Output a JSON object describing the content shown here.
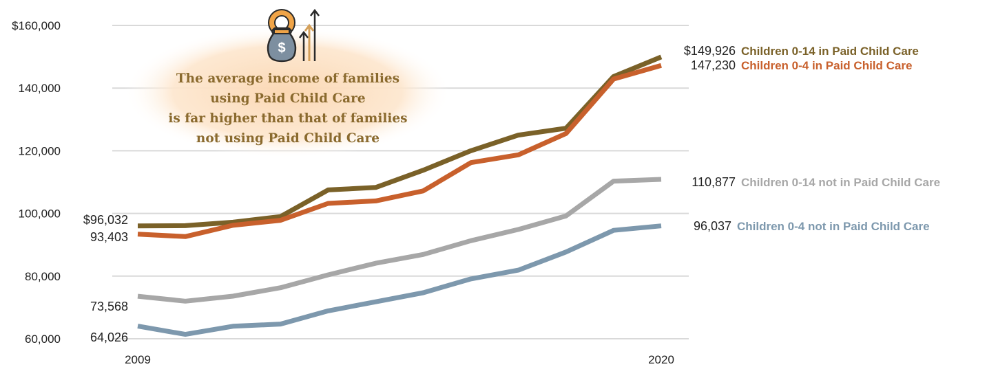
{
  "chart_data": {
    "type": "line",
    "title": "",
    "xlabel": "",
    "ylabel": "",
    "x": [
      2009,
      2010,
      2011,
      2012,
      2013,
      2014,
      2015,
      2016,
      2017,
      2018,
      2019,
      2020
    ],
    "ylim": [
      60000,
      160000
    ],
    "grid": true,
    "x_tick_labels": [
      "2009",
      "2020"
    ],
    "y_tick_labels": [
      "$160,000",
      "140,000",
      "120,000",
      "100,000",
      "80,000",
      "60,000"
    ],
    "y_ticks": [
      160000,
      140000,
      120000,
      100000,
      80000,
      60000
    ],
    "series": [
      {
        "name": "Children 0-14 in Paid Child Care",
        "color": "#7a6128",
        "values": [
          96032,
          96100,
          97200,
          99000,
          107500,
          108300,
          113800,
          120000,
          125000,
          127200,
          143700,
          149926
        ],
        "start_label": "$96,032",
        "end_label": "$149,926"
      },
      {
        "name": "Children 0-4 in Paid Child Care",
        "color": "#c8602c",
        "values": [
          93403,
          92600,
          96200,
          97800,
          103200,
          104000,
          107200,
          116200,
          118700,
          125500,
          142900,
          147230
        ],
        "start_label": "93,403",
        "end_label": "147,230"
      },
      {
        "name": "Children 0-14 not in Paid Child Care",
        "color": "#a7a7a7",
        "values": [
          73568,
          72000,
          73600,
          76300,
          80400,
          84100,
          86900,
          91300,
          94900,
          99200,
          110300,
          110877
        ],
        "start_label": "73,568",
        "end_label": "110,877"
      },
      {
        "name": "Children 0-4 not in Paid Child Care",
        "color": "#7d98ad",
        "values": [
          64026,
          61400,
          64000,
          64700,
          68900,
          71800,
          74700,
          79100,
          81900,
          87700,
          94600,
          96037
        ],
        "start_label": "64,026",
        "end_label": "96,037"
      }
    ],
    "annotation": {
      "lines": [
        "The average income of families",
        "using Paid Child Care",
        "is far higher than that of families",
        "not using Paid Child Care"
      ],
      "icon": "money-bag-growth-icon"
    }
  }
}
